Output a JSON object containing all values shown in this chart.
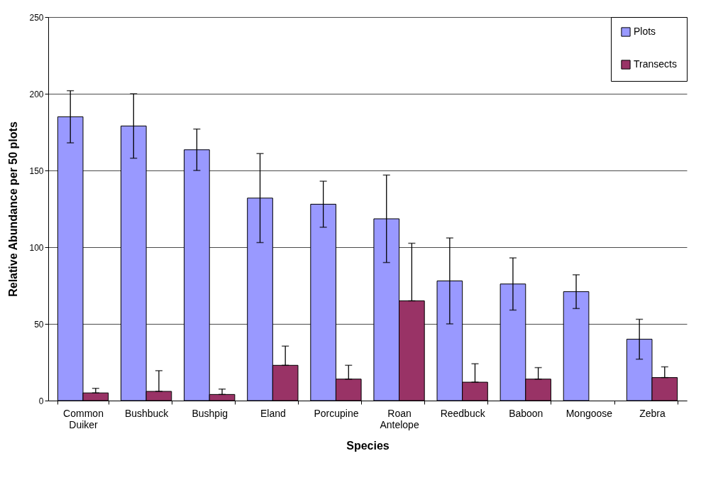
{
  "chart_data": {
    "type": "bar",
    "xlabel": "Species",
    "ylabel": "Relative Abundance per 50 plots",
    "categories": [
      "Common Duiker",
      "Bushbuck",
      "Bushpig",
      "Eland",
      "Porcupine",
      "Roan Antelope",
      "Reedbuck",
      "Baboon",
      "Mongoose",
      "Zebra"
    ],
    "series": [
      {
        "name": "Plots",
        "color": "#9999ff",
        "values": [
          185,
          179,
          163.5,
          132,
          128,
          118.5,
          78,
          76,
          71,
          40
        ],
        "errors": [
          [
            168,
            202
          ],
          [
            158,
            200
          ],
          [
            150,
            177
          ],
          [
            103,
            161
          ],
          [
            113,
            143
          ],
          [
            90,
            147
          ],
          [
            50,
            106
          ],
          [
            59,
            93
          ],
          [
            60,
            82
          ],
          [
            27,
            53
          ]
        ]
      },
      {
        "name": "Transects",
        "color": "#993366",
        "values": [
          5,
          6,
          4,
          23,
          14,
          65,
          12,
          14,
          0,
          15
        ],
        "errors": [
          [
            5,
            8
          ],
          [
            6,
            19.5
          ],
          [
            4,
            7.5
          ],
          [
            23,
            35.5
          ],
          [
            14,
            23
          ],
          [
            65,
            102.5
          ],
          [
            12,
            24
          ],
          [
            14,
            21.5
          ],
          null,
          [
            15,
            22
          ]
        ]
      }
    ],
    "ylim": [
      0,
      250
    ],
    "yticks": [
      0,
      50,
      100,
      150,
      200,
      250
    ],
    "grid": "y",
    "legend": "top right"
  }
}
